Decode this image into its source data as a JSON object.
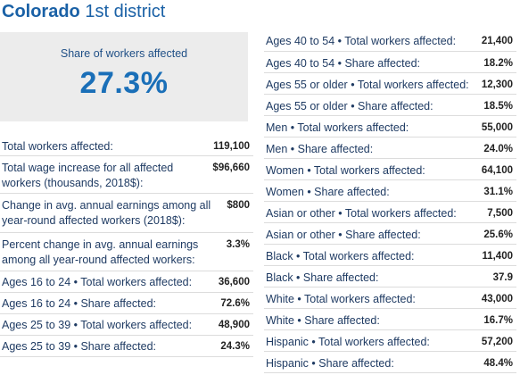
{
  "title": {
    "state": "Colorado",
    "district": "1st district"
  },
  "hero": {
    "label": "Share of workers affected",
    "value": "27.3%"
  },
  "left_rows": [
    {
      "label": "Total workers affected:",
      "value": "119,100"
    },
    {
      "label": "Total wage increase for all affected workers (thousands, 2018$):",
      "value": "$96,660"
    },
    {
      "label": "Change in avg. annual earnings among all year-round affected workers (2018$):",
      "value": "$800"
    },
    {
      "label": "Percent change in avg. annual earnings among all year-round affected workers:",
      "value": "3.3%"
    },
    {
      "label": "Ages 16 to 24 • Total workers affected:",
      "value": "36,600"
    },
    {
      "label": "Ages 16 to 24 • Share affected:",
      "value": "72.6%"
    },
    {
      "label": "Ages 25 to 39 • Total workers affected:",
      "value": "48,900"
    },
    {
      "label": "Ages 25 to 39 • Share affected:",
      "value": "24.3%"
    }
  ],
  "right_rows": [
    {
      "label": "Ages 40 to 54 • Total workers affected:",
      "value": "21,400"
    },
    {
      "label": "Ages 40 to 54 • Share affected:",
      "value": "18.2%"
    },
    {
      "label": "Ages 55 or older • Total workers affected:",
      "value": "12,300"
    },
    {
      "label": "Ages 55 or older • Share affected:",
      "value": "18.5%"
    },
    {
      "label": "Men • Total workers affected:",
      "value": "55,000"
    },
    {
      "label": "Men • Share affected:",
      "value": "24.0%"
    },
    {
      "label": "Women • Total workers affected:",
      "value": "64,100"
    },
    {
      "label": "Women • Share affected:",
      "value": "31.1%"
    },
    {
      "label": "Asian or other • Total workers affected:",
      "value": "7,500"
    },
    {
      "label": "Asian or other • Share affected:",
      "value": "25.6%"
    },
    {
      "label": "Black • Total workers affected:",
      "value": "11,400"
    },
    {
      "label": "Black • Share affected:",
      "value": "37.9"
    },
    {
      "label": "White • Total workers affected:",
      "value": "43,000"
    },
    {
      "label": "White • Share affected:",
      "value": "16.7%"
    },
    {
      "label": "Hispanic • Total workers affected:",
      "value": "57,200"
    },
    {
      "label": "Hispanic • Share affected:",
      "value": "48.4%"
    }
  ]
}
